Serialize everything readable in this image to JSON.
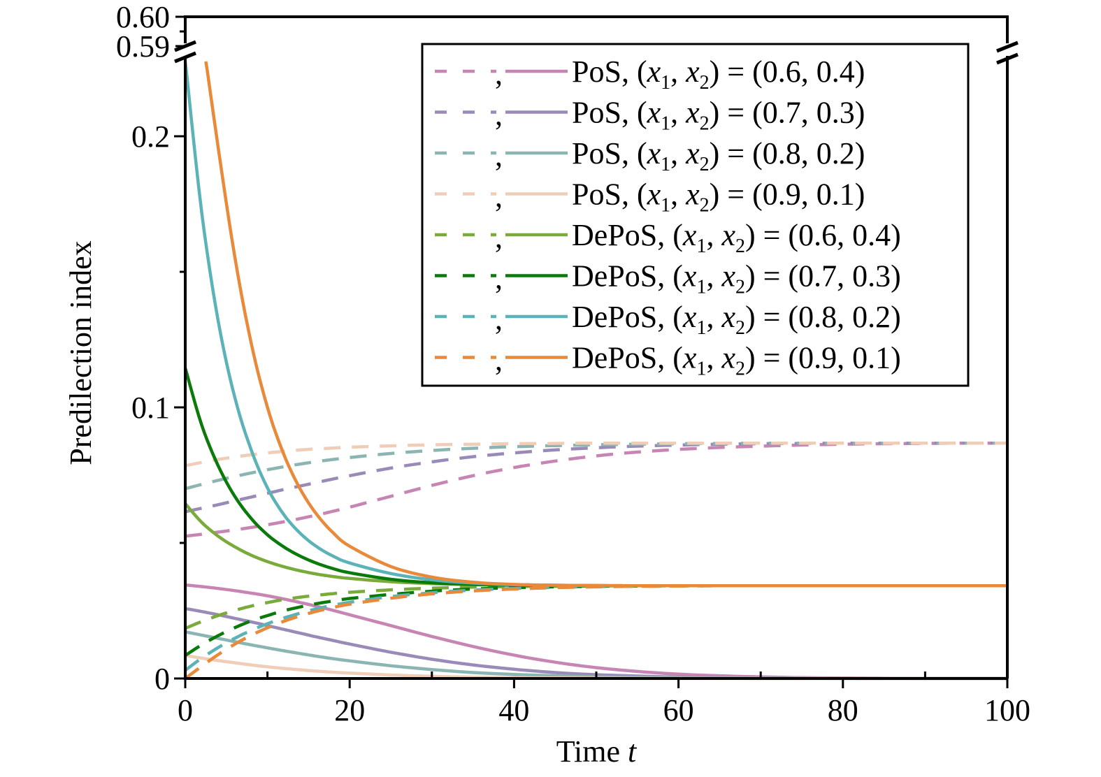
{
  "chart_data": {
    "type": "line",
    "title": "",
    "xlabel": "Time",
    "xlabel_var": "t",
    "ylabel": "Predilection index",
    "xlim": [
      0,
      100
    ],
    "ylim": [
      0,
      0.228
    ],
    "ylim_upper_segment": [
      0.59,
      0.6
    ],
    "axis_break": true,
    "grid": false,
    "legend_position": "top-right",
    "x_ticks": [
      "0",
      "20",
      "40",
      "60",
      "80",
      "100"
    ],
    "x_tick_values": [
      0,
      20,
      40,
      60,
      80,
      100
    ],
    "x_minor_tick_values": [
      10,
      30,
      50,
      70,
      90
    ],
    "y_ticks": [
      "0",
      "0.1",
      "0.2"
    ],
    "y_tick_values": [
      0,
      0.1,
      0.2
    ],
    "y_minor_tick_values": [
      0.05,
      0.15
    ],
    "y_upper_ticks": [
      "0.59",
      "0.60"
    ],
    "y_upper_tick_values": [
      0.59,
      0.6
    ],
    "legend_separator": ",",
    "x": [
      0,
      2,
      4,
      6,
      8,
      10,
      12,
      14,
      16,
      18,
      20,
      25,
      30,
      35,
      40,
      45,
      50,
      55,
      60,
      65,
      70,
      75,
      80,
      85,
      90,
      95,
      100
    ],
    "series": [
      {
        "name": "PoS, (x1, x2) = (0.6, 0.4)",
        "label_prefix": "PoS, (",
        "label_suffix": ") = (0.6, 0.4)",
        "color": "#c785b4",
        "dashed": [
          0.0525,
          0.0532,
          0.054,
          0.0548,
          0.0557,
          0.0567,
          0.0578,
          0.059,
          0.0603,
          0.0617,
          0.0632,
          0.0672,
          0.0712,
          0.0748,
          0.0778,
          0.0802,
          0.0821,
          0.0835,
          0.0845,
          0.0852,
          0.0857,
          0.0861,
          0.0864,
          0.0866,
          0.0867,
          0.0868,
          0.0868
        ],
        "solid": [
          0.0345,
          0.0339,
          0.0332,
          0.0324,
          0.0315,
          0.0305,
          0.0293,
          0.028,
          0.0266,
          0.0251,
          0.0235,
          0.0195,
          0.0155,
          0.0118,
          0.0086,
          0.006,
          0.004,
          0.0026,
          0.0016,
          0.001,
          0.0006,
          0.0003,
          0.0002,
          0.0001,
          0.0,
          0.0,
          0.0
        ]
      },
      {
        "name": "PoS, (x1, x2) = (0.7, 0.3)",
        "label_prefix": "PoS, (",
        "label_suffix": ") = (0.7, 0.3)",
        "color": "#9a8ab8",
        "dashed": [
          0.0615,
          0.0628,
          0.0641,
          0.0655,
          0.0669,
          0.0683,
          0.0697,
          0.071,
          0.0723,
          0.0736,
          0.0748,
          0.0776,
          0.0799,
          0.0818,
          0.0832,
          0.0843,
          0.0851,
          0.0857,
          0.0861,
          0.0864,
          0.0866,
          0.0867,
          0.0868,
          0.0868,
          0.0868,
          0.0868,
          0.0868
        ],
        "solid": [
          0.0258,
          0.0247,
          0.0235,
          0.0222,
          0.0209,
          0.0195,
          0.0181,
          0.0167,
          0.0153,
          0.014,
          0.0127,
          0.0097,
          0.0071,
          0.005,
          0.0034,
          0.0022,
          0.0014,
          0.0009,
          0.0005,
          0.0003,
          0.0002,
          0.0001,
          0.0,
          0.0,
          0.0,
          0.0,
          0.0
        ]
      },
      {
        "name": "PoS, (x1, x2) = (0.8, 0.2)",
        "label_prefix": "PoS, (",
        "label_suffix": ") = (0.8, 0.2)",
        "color": "#8ab5b2",
        "dashed": [
          0.07,
          0.0716,
          0.0731,
          0.0745,
          0.0758,
          0.077,
          0.0781,
          0.0791,
          0.08,
          0.0808,
          0.0815,
          0.083,
          0.0841,
          0.0849,
          0.0855,
          0.0859,
          0.0862,
          0.0864,
          0.0866,
          0.0867,
          0.0868,
          0.0868,
          0.0868,
          0.0868,
          0.0868,
          0.0868,
          0.0868
        ],
        "solid": [
          0.0172,
          0.016,
          0.0148,
          0.0136,
          0.0124,
          0.0113,
          0.0102,
          0.0092,
          0.0082,
          0.0073,
          0.0065,
          0.0047,
          0.0033,
          0.0022,
          0.0015,
          0.001,
          0.0006,
          0.0004,
          0.0002,
          0.0001,
          0.0,
          0.0,
          0.0,
          0.0,
          0.0,
          0.0,
          0.0
        ]
      },
      {
        "name": "PoS, (x1, x2) = (0.9, 0.1)",
        "label_prefix": "PoS, (",
        "label_suffix": ") = (0.9, 0.1)",
        "color": "#f0cdb6",
        "dashed": [
          0.0785,
          0.0797,
          0.0808,
          0.0817,
          0.0825,
          0.0832,
          0.0838,
          0.0843,
          0.0847,
          0.085,
          0.0853,
          0.0858,
          0.0862,
          0.0864,
          0.0866,
          0.0867,
          0.0868,
          0.0868,
          0.0868,
          0.0868,
          0.0868,
          0.0868,
          0.0868,
          0.0868,
          0.0868,
          0.0868,
          0.0868
        ],
        "solid": [
          0.0085,
          0.0075,
          0.0066,
          0.0058,
          0.005,
          0.0043,
          0.0037,
          0.0032,
          0.0027,
          0.0023,
          0.002,
          0.0013,
          0.0008,
          0.0005,
          0.0003,
          0.0002,
          0.0001,
          0.0,
          0.0,
          0.0,
          0.0,
          0.0,
          0.0,
          0.0,
          0.0,
          0.0,
          0.0
        ]
      },
      {
        "name": "DePoS, (x1, x2) = (0.6, 0.4)",
        "label_prefix": "DePoS, (",
        "label_suffix": ") = (0.6, 0.4)",
        "color": "#7aab3a",
        "dashed": [
          0.0185,
          0.021,
          0.0232,
          0.0251,
          0.0267,
          0.028,
          0.0291,
          0.03,
          0.0307,
          0.0313,
          0.0318,
          0.0327,
          0.0333,
          0.0337,
          0.0339,
          0.034,
          0.0341,
          0.0342,
          0.0342,
          0.0342,
          0.0342,
          0.0342,
          0.0342,
          0.0342,
          0.0342,
          0.0342,
          0.0342
        ],
        "solid": [
          0.0645,
          0.0576,
          0.0525,
          0.0486,
          0.0455,
          0.0431,
          0.0412,
          0.0397,
          0.0385,
          0.0376,
          0.0369,
          0.0357,
          0.035,
          0.0346,
          0.0344,
          0.0343,
          0.0342,
          0.0342,
          0.0342,
          0.0342,
          0.0342,
          0.0342,
          0.0342,
          0.0342,
          0.0342,
          0.0342,
          0.0342
        ]
      },
      {
        "name": "DePoS, (x1, x2) = (0.7, 0.3)",
        "label_prefix": "DePoS, (",
        "label_suffix": ") = (0.7, 0.3)",
        "color": "#0a7a0a",
        "dashed": [
          0.0085,
          0.0124,
          0.0158,
          0.0187,
          0.0212,
          0.0232,
          0.025,
          0.0264,
          0.0276,
          0.0286,
          0.0295,
          0.031,
          0.0322,
          0.033,
          0.0335,
          0.0338,
          0.034,
          0.0341,
          0.0342,
          0.0342,
          0.0342,
          0.0342,
          0.0342,
          0.0342,
          0.0342,
          0.0342,
          0.0342
        ],
        "solid": [
          0.1145,
          0.0935,
          0.0785,
          0.0673,
          0.0591,
          0.053,
          0.0485,
          0.0451,
          0.0425,
          0.0405,
          0.039,
          0.0366,
          0.0353,
          0.0347,
          0.0344,
          0.0343,
          0.0342,
          0.0342,
          0.0342,
          0.0342,
          0.0342,
          0.0342,
          0.0342,
          0.0342,
          0.0342,
          0.0342,
          0.0342
        ]
      },
      {
        "name": "DePoS, (x1, x2) = (0.8, 0.2)",
        "label_prefix": "DePoS, (",
        "label_suffix": ") = (0.8, 0.2)",
        "color": "#5bb3b8",
        "dashed": [
          0.003,
          0.0075,
          0.0114,
          0.0148,
          0.0177,
          0.0202,
          0.0223,
          0.0241,
          0.0257,
          0.027,
          0.0281,
          0.0302,
          0.0316,
          0.0326,
          0.0332,
          0.0336,
          0.0339,
          0.034,
          0.0341,
          0.0342,
          0.0342,
          0.0342,
          0.0342,
          0.0342,
          0.0342,
          0.0342,
          0.0342
        ],
        "solid": [
          0.228,
          0.172,
          0.132,
          0.104,
          0.0845,
          0.0703,
          0.0604,
          0.0535,
          0.0486,
          0.0451,
          0.0426,
          0.0387,
          0.0364,
          0.0352,
          0.0346,
          0.0344,
          0.0343,
          0.0342,
          0.0342,
          0.0342,
          0.0342,
          0.0342,
          0.0342,
          0.0342,
          0.0342,
          0.0342,
          0.0342
        ]
      },
      {
        "name": "DePoS, (x1, x2) = (0.9, 0.1)",
        "label_prefix": "DePoS, (",
        "label_suffix": ") = (0.9, 0.1)",
        "color": "#e88a3a",
        "dashed": [
          0.0,
          0.0045,
          0.0088,
          0.0126,
          0.0159,
          0.0187,
          0.0211,
          0.0231,
          0.0248,
          0.0262,
          0.0274,
          0.0296,
          0.0312,
          0.0323,
          0.033,
          0.0335,
          0.0338,
          0.034,
          0.0341,
          0.0342,
          0.0342,
          0.0342,
          0.0342,
          0.0342,
          0.0342,
          0.0342,
          0.0342
        ],
        "solid": [
          null,
          0.228,
          0.196,
          0.156,
          0.124,
          0.1,
          0.0826,
          0.0698,
          0.0605,
          0.0537,
          0.0488,
          0.0413,
          0.0374,
          0.0355,
          0.0347,
          0.0344,
          0.0343,
          0.0342,
          0.0342,
          0.0342,
          0.0342,
          0.0342,
          0.0342,
          0.0342,
          0.0342,
          0.0342,
          0.0342
        ],
        "solid_start_x": 2.5
      }
    ]
  }
}
